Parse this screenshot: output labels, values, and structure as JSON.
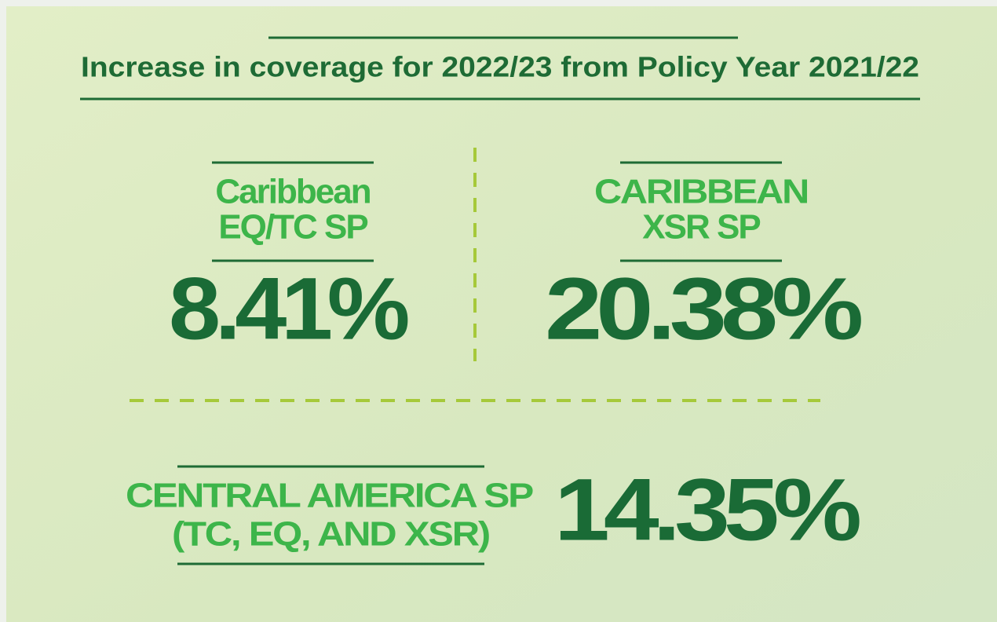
{
  "header": {
    "title": "Increase in coverage for 2022/23 from Policy Year 2021/22"
  },
  "items": [
    {
      "label": [
        "Caribbean",
        "EQ/TC SP"
      ],
      "value": "8.41%"
    },
    {
      "label": [
        "CARIBBEAN",
        "XSR SP"
      ],
      "value": "20.38%"
    },
    {
      "label": [
        "CENTRAL AMERICA SP",
        "(TC, EQ, AND XSR)"
      ],
      "value": "14.35%"
    }
  ]
}
